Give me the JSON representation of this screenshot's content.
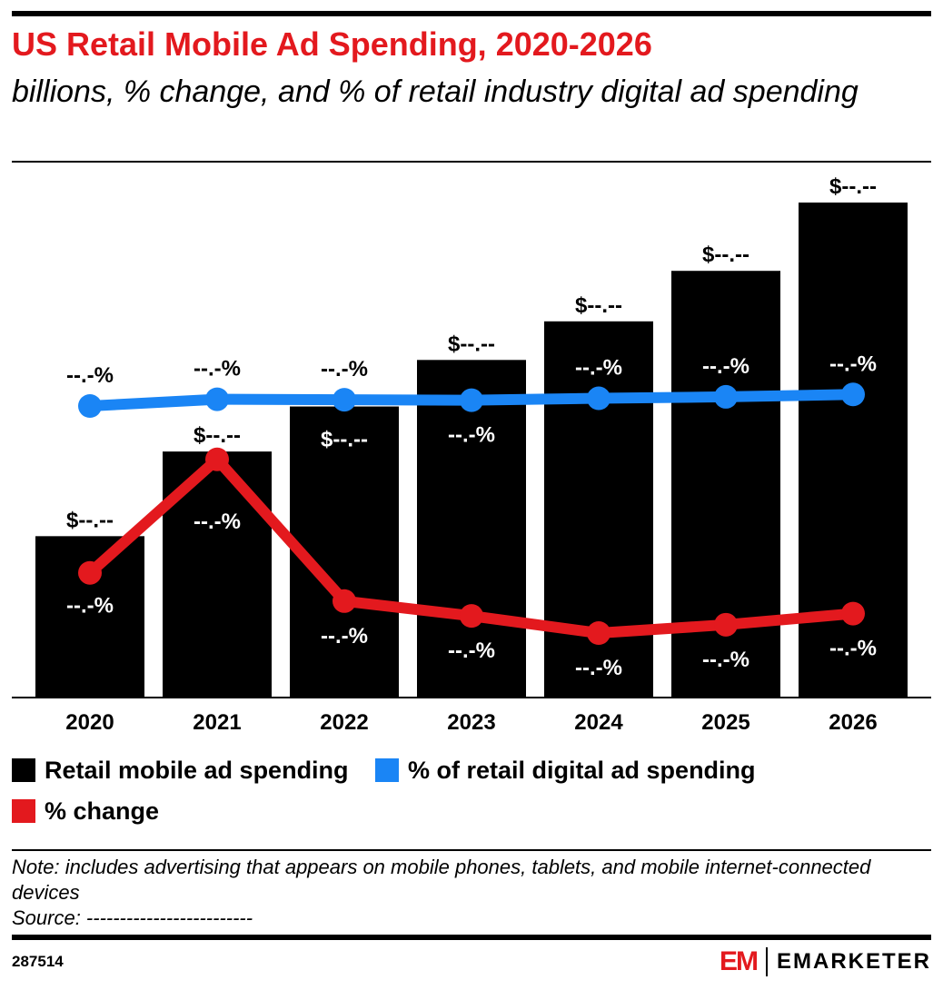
{
  "header": {
    "title": "US Retail Mobile Ad Spending, 2020-2026",
    "subtitle": "billions, % change, and % of retail industry digital ad spending"
  },
  "colors": {
    "accent": "#e3191e",
    "bar": "#000000",
    "share_line": "#1a85f5",
    "change_line": "#e3191e"
  },
  "chart_data": {
    "type": "bar",
    "categories": [
      "2020",
      "2021",
      "2022",
      "2023",
      "2024",
      "2025",
      "2026"
    ],
    "series": [
      {
        "name": "Retail mobile ad spending",
        "type": "bar",
        "values": [
          32.6,
          49.7,
          58.8,
          68.2,
          76.0,
          86.2,
          100.0
        ],
        "labels": [
          "$--.--",
          "$--.--",
          "$--.--",
          "$--.--",
          "$--.--",
          "$--.--",
          "$--.--"
        ]
      },
      {
        "name": "% of retail digital ad spending",
        "type": "line",
        "values": [
          78.0,
          79.4,
          79.3,
          79.2,
          79.6,
          79.9,
          80.4
        ],
        "labels": [
          "--.-%",
          "--.-%",
          "--.-%",
          "--.-%",
          "--.-%",
          "--.-%",
          "--.-%"
        ]
      },
      {
        "name": "% change",
        "type": "line",
        "values": [
          23.0,
          47.5,
          16.9,
          13.7,
          10.0,
          11.8,
          14.2
        ],
        "labels": [
          "--.-%",
          "--.-%",
          "--.-%",
          "--.-%",
          "--.-%",
          "--.-%",
          "--.-%"
        ]
      }
    ],
    "grid": false,
    "legend_position": "bottom-left"
  },
  "legend": {
    "bar": "Retail mobile ad spending",
    "share": "% of retail digital ad spending",
    "change": "% change"
  },
  "footer": {
    "note": "Note: includes advertising that appears on mobile phones, tablets, and mobile internet-connected devices",
    "source": "Source: -------------------------",
    "chart_id": "287514",
    "brand_mark": "EM",
    "brand_name": "EMARKETER"
  }
}
